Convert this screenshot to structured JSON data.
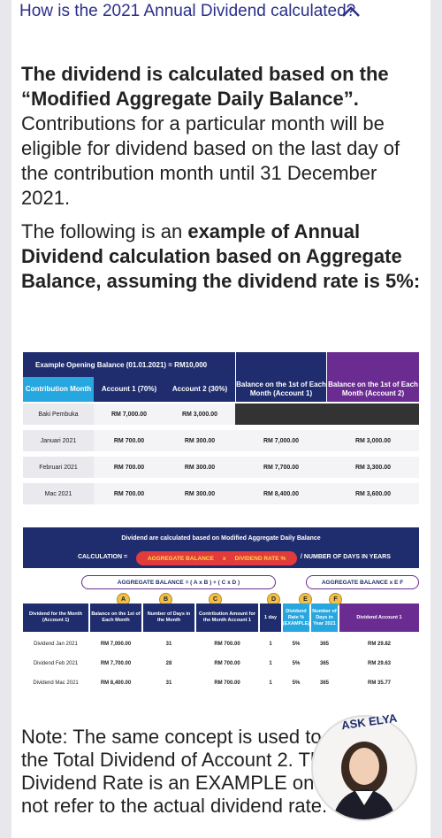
{
  "header": {
    "title": "How is the 2021 Annual Dividend calculated?"
  },
  "intro": {
    "bold": "The dividend is calculated based on the “Modified Aggregate Daily Balance”.",
    "rest": " Contributions for a particular month will be eligible for dividend based on the last day of the contribution month until 31 December 2021."
  },
  "example": {
    "plain": "The following is an ",
    "bold": "example of Annual Dividend calculation based on Aggregate Balance, assuming the dividend rate is 5%:"
  },
  "table1": {
    "opening": "Example Opening Balance (01.01.2021) = RM10,000",
    "headers": [
      "Contribution Month",
      "Account 1 (70%)",
      "Account 2 (30%)",
      "Balance on the 1st of Each Month (Account 1)",
      "Balance on the 1st of Each Month (Account 2)"
    ],
    "rows": [
      [
        "Baki Pembuka",
        "RM 7,000.00",
        "RM 3,000.00",
        "",
        ""
      ],
      [
        "Januari 2021",
        "RM 700.00",
        "RM 300.00",
        "RM 7,000.00",
        "RM 3,000.00"
      ],
      [
        "Februari 2021",
        "RM 700.00",
        "RM 300.00",
        "RM 7,700.00",
        "RM 3,300.00"
      ],
      [
        "Mac 2021",
        "RM 700.00",
        "RM 300.00",
        "RM 8,400.00",
        "RM 3,600.00"
      ]
    ]
  },
  "table2": {
    "banner": "Dividend are calculated based on Modified Aggregate Daily Balance",
    "calc_label": "CALCULATION  =",
    "calc_agg": "AGGREGATE BALANCE",
    "calc_x": "x",
    "calc_rate": "DIVIDEND RATE %",
    "calc_days": "/  NUMBER OF DAYS IN YEARS",
    "agg1": "AGGREGATE BALANCE = ( A x B ) + ( C x D )",
    "agg2": "AGGREGATE BALANCE  x  E  F",
    "badges": [
      "A",
      "B",
      "C",
      "D",
      "E",
      "F"
    ],
    "headers": [
      "Dividend for the Month (Account 1)",
      "Balance on the 1st of Each Month",
      "Number of Days in the Month",
      "Contribution Amount for the Month Account 1",
      "1 day",
      "Dividend Rate % (EXAMPLE)",
      "Number of Days in Year 2021",
      "Dividend Account 1"
    ],
    "rows": [
      [
        "Dividend Jan 2021",
        "RM 7,000.00",
        "31",
        "RM 700.00",
        "1",
        "5%",
        "365",
        "RM 29.82"
      ],
      [
        "Dividend Feb 2021",
        "RM 7,700.00",
        "28",
        "RM 700.00",
        "1",
        "5%",
        "365",
        "RM 29.63"
      ],
      [
        "Dividend Mac 2021",
        "RM 8,400.00",
        "31",
        "RM 700.00",
        "1",
        "5%",
        "365",
        "RM 35.77"
      ]
    ]
  },
  "note": "Note: The same concept is used to calculate the Total Dividend of Account 2. The 5% Dividend Rate is an EXAMPLE only and does not refer to the actual dividend rate.",
  "assistant": {
    "label": "ASK ELYA"
  },
  "colors": {
    "navy": "#1f2d6e",
    "blue": "#26a7e0",
    "purple": "#6b2c91",
    "red": "#e23b3b",
    "gold": "#f1c04a"
  }
}
